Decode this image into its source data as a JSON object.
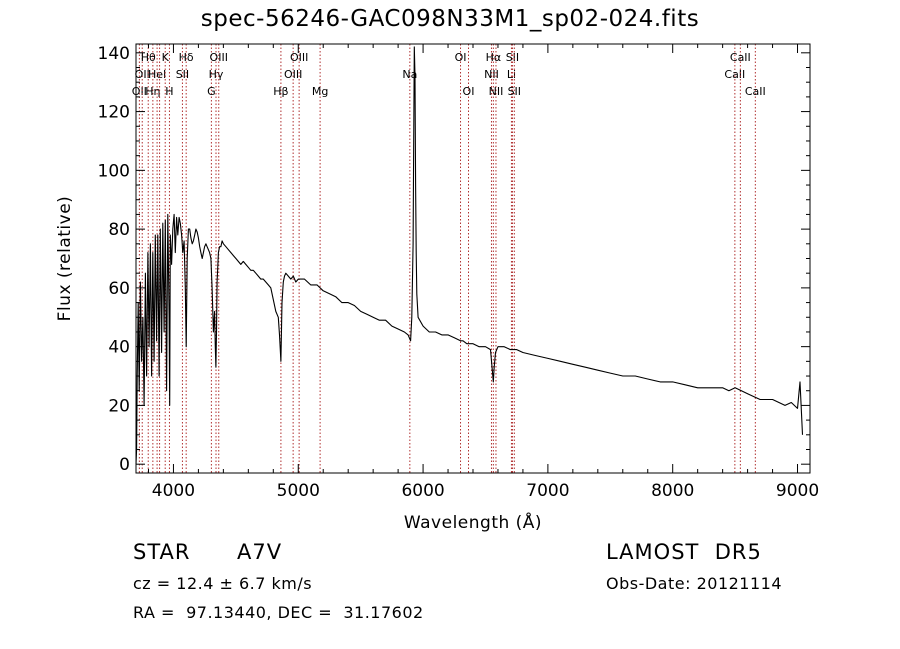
{
  "chart_data": {
    "type": "line",
    "title": "spec-56246-GAC098N33M1_sp02-024.fits",
    "xlabel": "Wavelength (Å)",
    "ylabel": "Flux (relative)",
    "xlim": [
      3700,
      9100
    ],
    "ylim": [
      -3,
      143
    ],
    "xticks": [
      4000,
      5000,
      6000,
      7000,
      8000,
      9000
    ],
    "yticks": [
      0,
      20,
      40,
      60,
      80,
      100,
      120,
      140
    ],
    "grid": false,
    "line_color": "#000000",
    "marker_color": "#b03030",
    "series": [
      {
        "x": [
          3700,
          3705,
          3710,
          3718,
          3726,
          3735,
          3745,
          3755,
          3765,
          3775,
          3785,
          3795,
          3805,
          3815,
          3825,
          3835,
          3845,
          3855,
          3865,
          3875,
          3885,
          3895,
          3905,
          3915,
          3925,
          3935,
          3945,
          3955,
          3965,
          3970,
          3975,
          3985,
          3995,
          4005,
          4015,
          4025,
          4035,
          4045,
          4055,
          4065,
          4075,
          4085,
          4095,
          4102,
          4110,
          4120,
          4130,
          4140,
          4150,
          4160,
          4170,
          4180,
          4190,
          4200,
          4210,
          4220,
          4230,
          4240,
          4250,
          4260,
          4270,
          4280,
          4290,
          4300,
          4310,
          4320,
          4330,
          4335,
          4340,
          4345,
          4350,
          4360,
          4370,
          4380,
          4390,
          4400,
          4420,
          4440,
          4460,
          4480,
          4500,
          4520,
          4540,
          4560,
          4580,
          4600,
          4620,
          4640,
          4660,
          4680,
          4700,
          4720,
          4740,
          4760,
          4780,
          4800,
          4820,
          4840,
          4850,
          4861,
          4870,
          4880,
          4890,
          4900,
          4920,
          4940,
          4960,
          4980,
          5000,
          5050,
          5100,
          5150,
          5200,
          5250,
          5300,
          5350,
          5400,
          5450,
          5500,
          5550,
          5600,
          5650,
          5700,
          5750,
          5800,
          5850,
          5880,
          5900,
          5910,
          5920,
          5925,
          5930,
          5935,
          5940,
          5945,
          5950,
          5960,
          6000,
          6050,
          6100,
          6150,
          6200,
          6250,
          6300,
          6320,
          6350,
          6400,
          6450,
          6500,
          6540,
          6555,
          6563,
          6570,
          6580,
          6600,
          6650,
          6700,
          6750,
          6800,
          6900,
          7000,
          7100,
          7200,
          7300,
          7400,
          7500,
          7600,
          7700,
          7800,
          7900,
          8000,
          8100,
          8200,
          8300,
          8400,
          8450,
          8500,
          8550,
          8600,
          8650,
          8700,
          8800,
          8900,
          8950,
          9000,
          9020,
          9040
        ],
        "y": [
          0,
          5,
          30,
          55,
          25,
          62,
          35,
          50,
          20,
          65,
          30,
          72,
          40,
          75,
          30,
          72,
          35,
          78,
          42,
          78,
          30,
          80,
          38,
          82,
          45,
          83,
          25,
          85,
          50,
          20,
          78,
          68,
          80,
          85,
          72,
          84,
          78,
          84,
          82,
          78,
          72,
          76,
          60,
          40,
          70,
          80,
          80,
          77,
          75,
          76,
          78,
          80,
          79,
          77,
          74,
          72,
          70,
          72,
          74,
          75,
          74,
          73,
          72,
          70,
          60,
          45,
          52,
          40,
          33,
          45,
          62,
          72,
          74,
          74,
          76,
          75,
          74,
          73,
          72,
          71,
          70,
          69,
          68,
          69,
          68,
          67,
          66,
          66,
          65,
          64,
          63,
          63,
          62,
          61,
          60,
          56,
          52,
          50,
          44,
          35,
          55,
          62,
          64,
          65,
          64,
          63,
          64,
          62,
          63,
          63,
          61,
          61,
          59,
          58,
          57,
          55,
          55,
          54,
          52,
          51,
          50,
          49,
          49,
          47,
          46,
          45,
          44,
          42,
          50,
          75,
          110,
          142,
          132,
          95,
          72,
          58,
          50,
          47,
          45,
          45,
          44,
          44,
          43,
          42,
          42,
          41,
          41,
          40,
          40,
          39,
          32,
          28,
          33,
          38,
          40,
          40,
          39,
          39,
          38,
          37,
          36,
          35,
          34,
          33,
          32,
          31,
          30,
          30,
          29,
          28,
          28,
          27,
          26,
          26,
          26,
          25,
          26,
          25,
          24,
          23,
          22,
          22,
          20,
          21,
          19,
          28,
          10
        ]
      }
    ],
    "line_markers": [
      {
        "wl": 3727,
        "label": "OII",
        "row": 2
      },
      {
        "wl": 3750,
        "label": "OII",
        "row": 1
      },
      {
        "wl": 3798,
        "label": "Hθ",
        "row": 0
      },
      {
        "wl": 3835,
        "label": "Hη",
        "row": 2
      },
      {
        "wl": 3869,
        "label": "HeI",
        "row": 1
      },
      {
        "wl": 3889,
        "label": "",
        "row": 0
      },
      {
        "wl": 3934,
        "label": "K",
        "row": 0
      },
      {
        "wl": 3968,
        "label": "H",
        "row": 2
      },
      {
        "wl": 4072,
        "label": "SII",
        "row": 1
      },
      {
        "wl": 4102,
        "label": "Hδ",
        "row": 0
      },
      {
        "wl": 4304,
        "label": "G",
        "row": 2
      },
      {
        "wl": 4341,
        "label": "Hγ",
        "row": 1
      },
      {
        "wl": 4363,
        "label": "OIII",
        "row": 0
      },
      {
        "wl": 4861,
        "label": "Hβ",
        "row": 2
      },
      {
        "wl": 4959,
        "label": "OIII",
        "row": 1
      },
      {
        "wl": 5007,
        "label": "OIII",
        "row": 0
      },
      {
        "wl": 5175,
        "label": "Mg",
        "row": 2
      },
      {
        "wl": 5894,
        "label": "Na",
        "row": 1
      },
      {
        "wl": 6300,
        "label": "OI",
        "row": 0
      },
      {
        "wl": 6364,
        "label": "OI",
        "row": 2
      },
      {
        "wl": 6548,
        "label": "NII",
        "row": 1
      },
      {
        "wl": 6563,
        "label": "Hα",
        "row": 0
      },
      {
        "wl": 6584,
        "label": "NII",
        "row": 2
      },
      {
        "wl": 6708,
        "label": "Li",
        "row": 1
      },
      {
        "wl": 6716,
        "label": "SII",
        "row": 0
      },
      {
        "wl": 6731,
        "label": "SII",
        "row": 2
      },
      {
        "wl": 8498,
        "label": "CaII",
        "row": 1
      },
      {
        "wl": 8542,
        "label": "CaII",
        "row": 0
      },
      {
        "wl": 8662,
        "label": "CaII",
        "row": 2
      }
    ]
  },
  "info": {
    "class": "STAR",
    "subclass": "A7V",
    "survey": "LAMOST  DR5",
    "cz": "cz = 12.4 ± 6.7 km/s",
    "obs_date": "Obs-Date: 20121114",
    "coords": "RA =  97.13440, DEC =  31.17602"
  }
}
